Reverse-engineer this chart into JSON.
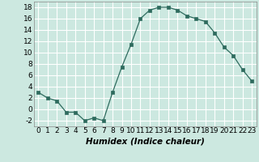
{
  "x": [
    0,
    1,
    2,
    3,
    4,
    5,
    6,
    7,
    8,
    9,
    10,
    11,
    12,
    13,
    14,
    15,
    16,
    17,
    18,
    19,
    20,
    21,
    22,
    23
  ],
  "y": [
    3,
    2,
    1.5,
    -0.5,
    -0.5,
    -2,
    -1.5,
    -2,
    3,
    7.5,
    11.5,
    16,
    17.5,
    18,
    18,
    17.5,
    16.5,
    16,
    15.5,
    13.5,
    11,
    9.5,
    7,
    5
  ],
  "line_color": "#2e6b5e",
  "marker": "s",
  "marker_size": 2.5,
  "bg_color": "#cce8e0",
  "grid_color": "#ffffff",
  "xlabel": "Humidex (Indice chaleur)",
  "ylim": [
    -3,
    19
  ],
  "xlim": [
    -0.5,
    23.5
  ],
  "yticks": [
    -2,
    0,
    2,
    4,
    6,
    8,
    10,
    12,
    14,
    16,
    18
  ],
  "xticks": [
    0,
    1,
    2,
    3,
    4,
    5,
    6,
    7,
    8,
    9,
    10,
    11,
    12,
    13,
    14,
    15,
    16,
    17,
    18,
    19,
    20,
    21,
    22,
    23
  ],
  "xlabel_fontsize": 7.5,
  "tick_fontsize": 6.5
}
